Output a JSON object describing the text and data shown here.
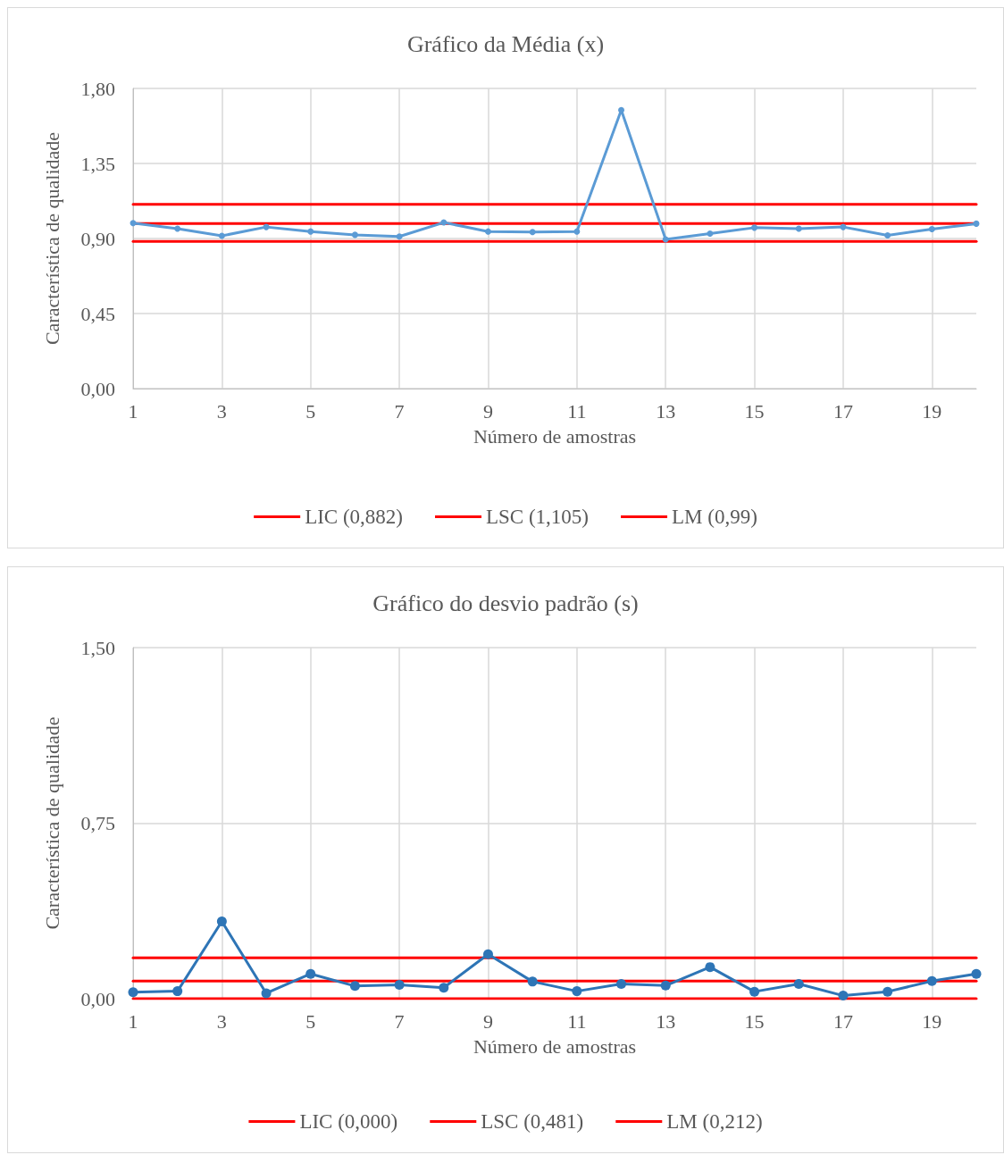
{
  "chart_data": [
    {
      "type": "line",
      "title": "Gráfico da Média (x)",
      "xlabel": "Número de amostras",
      "ylabel": "Característica de qualidade",
      "x": [
        1,
        2,
        3,
        4,
        5,
        6,
        7,
        8,
        9,
        10,
        11,
        12,
        13,
        14,
        15,
        16,
        17,
        18,
        19,
        20
      ],
      "xlim": [
        1,
        20
      ],
      "xticks": [
        1,
        3,
        5,
        7,
        9,
        11,
        13,
        15,
        17,
        19
      ],
      "ylim": [
        0,
        1.8
      ],
      "yticks": [
        {
          "value": 0,
          "label": "0,00"
        },
        {
          "value": 0.45,
          "label": "0,45"
        },
        {
          "value": 0.9,
          "label": "0,90"
        },
        {
          "value": 1.35,
          "label": "1,35"
        },
        {
          "value": 1.8,
          "label": "1,80"
        }
      ],
      "grid": true,
      "legend": "bottom",
      "marker": "circle",
      "series": [
        {
          "color": "#5b9bd5",
          "values": [
            0.992,
            0.959,
            0.916,
            0.969,
            0.942,
            0.922,
            0.912,
            0.996,
            0.942,
            0.939,
            0.942,
            1.67,
            0.895,
            0.929,
            0.965,
            0.959,
            0.969,
            0.919,
            0.956,
            0.989
          ]
        },
        {
          "name": "LIC (0,882)",
          "color": "#ff0000",
          "marker": "none",
          "values": [
            0.882,
            0.882,
            0.882,
            0.882,
            0.882,
            0.882,
            0.882,
            0.882,
            0.882,
            0.882,
            0.882,
            0.882,
            0.882,
            0.882,
            0.882,
            0.882,
            0.882,
            0.882,
            0.882,
            0.882
          ]
        },
        {
          "name": "LSC (1,105)",
          "color": "#ff0000",
          "marker": "none",
          "values": [
            1.105,
            1.105,
            1.105,
            1.105,
            1.105,
            1.105,
            1.105,
            1.105,
            1.105,
            1.105,
            1.105,
            1.105,
            1.105,
            1.105,
            1.105,
            1.105,
            1.105,
            1.105,
            1.105,
            1.105
          ]
        },
        {
          "name": "LM (0,99)",
          "color": "#ff0000",
          "marker": "none",
          "values": [
            0.99,
            0.99,
            0.99,
            0.99,
            0.99,
            0.99,
            0.99,
            0.99,
            0.99,
            0.99,
            0.99,
            0.99,
            0.99,
            0.99,
            0.99,
            0.99,
            0.99,
            0.99,
            0.99,
            0.99
          ]
        }
      ]
    },
    {
      "type": "line",
      "title": "Gráfico do desvio padrão (s)",
      "xlabel": "Número de amostras",
      "ylabel": "Característica de qualidade",
      "x": [
        1,
        2,
        3,
        4,
        5,
        6,
        7,
        8,
        9,
        10,
        11,
        12,
        13,
        14,
        15,
        16,
        17,
        18,
        19,
        20
      ],
      "xlim": [
        1,
        20
      ],
      "xticks": [
        1,
        3,
        5,
        7,
        9,
        11,
        13,
        15,
        17,
        19
      ],
      "ylim": [
        0,
        1.5
      ],
      "yticks": [
        {
          "value": 0,
          "label": "0,00"
        },
        {
          "value": 0.75,
          "label": "0,75"
        },
        {
          "value": 1.5,
          "label": "1,50"
        }
      ],
      "grid": true,
      "legend": "bottom",
      "marker": "circle",
      "series": [
        {
          "color": "#2e75b6",
          "values": [
            0.028,
            0.032,
            0.33,
            0.023,
            0.106,
            0.054,
            0.059,
            0.047,
            0.19,
            0.073,
            0.032,
            0.063,
            0.056,
            0.135,
            0.03,
            0.063,
            0.013,
            0.03,
            0.075,
            0.106
          ]
        },
        {
          "name": "LIC (0,000)",
          "color": "#ff0000",
          "marker": "none",
          "values": [
            0,
            0,
            0,
            0,
            0,
            0,
            0,
            0,
            0,
            0,
            0,
            0,
            0,
            0,
            0,
            0,
            0,
            0,
            0,
            0
          ]
        },
        {
          "name": "LSC (0,481)",
          "color": "#ff0000",
          "marker": "none",
          "values": [
            0.175,
            0.175,
            0.175,
            0.175,
            0.175,
            0.175,
            0.175,
            0.175,
            0.175,
            0.175,
            0.175,
            0.175,
            0.175,
            0.175,
            0.175,
            0.175,
            0.175,
            0.175,
            0.175,
            0.175
          ]
        },
        {
          "name": "LM (0,212)",
          "color": "#ff0000",
          "marker": "none",
          "values": [
            0.075,
            0.075,
            0.075,
            0.075,
            0.075,
            0.075,
            0.075,
            0.075,
            0.075,
            0.075,
            0.075,
            0.075,
            0.075,
            0.075,
            0.075,
            0.075,
            0.075,
            0.075,
            0.075,
            0.075
          ]
        }
      ]
    }
  ]
}
